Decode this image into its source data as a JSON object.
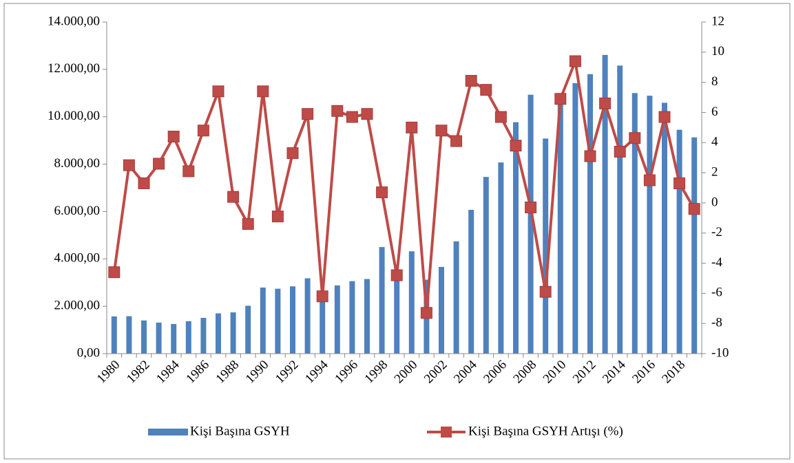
{
  "chart_data": {
    "type": "bar_line",
    "categories": [
      "1980",
      null,
      "1982",
      null,
      "1984",
      null,
      "1986",
      null,
      "1988",
      null,
      "1990",
      null,
      "1992",
      null,
      "1994",
      null,
      "1996",
      null,
      "1998",
      null,
      "2000",
      null,
      "2002",
      null,
      "2004",
      null,
      "2006",
      null,
      "2008",
      null,
      "2010",
      null,
      "2012",
      null,
      "2014",
      null,
      "2016",
      null,
      "2018",
      null
    ],
    "series": [
      {
        "name": "Kişi Başına GSYH",
        "color": "#4f81bd",
        "type": "bar",
        "values": [
          1570,
          1580,
          1400,
          1310,
          1250,
          1370,
          1510,
          1700,
          1740,
          2020,
          2790,
          2740,
          2840,
          3180,
          2270,
          2880,
          3060,
          3150,
          4500,
          3400,
          4320,
          3120,
          3660,
          4740,
          6070,
          7460,
          8070,
          9770,
          10930,
          9080,
          10740,
          11420,
          11800,
          12610,
          12160,
          11000,
          10890,
          10590,
          9450,
          9130
        ]
      },
      {
        "name": "Kişi Başına GSYH Artışı (%)",
        "color": "#be4b48",
        "type": "line",
        "axis": "y2",
        "values": [
          -4.6,
          2.5,
          1.3,
          2.6,
          4.4,
          2.1,
          4.8,
          7.4,
          0.4,
          -1.4,
          7.4,
          -0.9,
          3.3,
          5.9,
          -6.2,
          6.1,
          5.7,
          5.9,
          0.7,
          -4.8,
          5.0,
          -7.3,
          4.8,
          4.1,
          8.1,
          7.5,
          5.7,
          3.8,
          -0.3,
          -5.9,
          6.9,
          9.4,
          3.1,
          6.6,
          3.4,
          4.3,
          1.5,
          5.7,
          1.3,
          -0.4
        ]
      }
    ],
    "ylim": [
      0,
      14000
    ],
    "yticks": [
      {
        "value": 0,
        "label": "0,00"
      },
      {
        "value": 2000,
        "label": "2.000,00"
      },
      {
        "value": 4000,
        "label": "4.000,00"
      },
      {
        "value": 6000,
        "label": "6.000,00"
      },
      {
        "value": 8000,
        "label": "8.000,00"
      },
      {
        "value": 10000,
        "label": "10.000,00"
      },
      {
        "value": 12000,
        "label": "12.000,00"
      },
      {
        "value": 14000,
        "label": "14.000,00"
      }
    ],
    "y2lim": [
      -10,
      12
    ],
    "y2ticks": [
      -10,
      -8,
      -6,
      -4,
      -2,
      0,
      2,
      4,
      6,
      8,
      10,
      12
    ],
    "legend": "bottom"
  }
}
